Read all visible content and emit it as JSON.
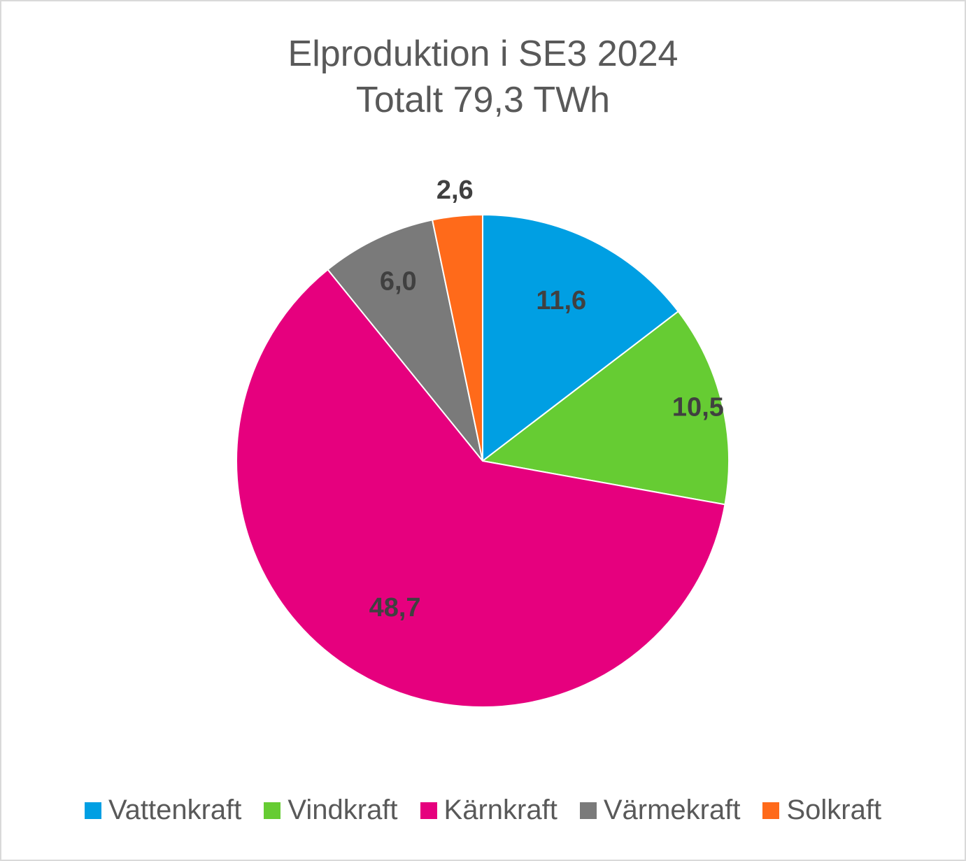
{
  "chart_data": {
    "type": "pie",
    "title": "Elproduktion i SE3 2024",
    "subtitle": "Totalt 79,3 TWh",
    "categories": [
      "Vattenkraft",
      "Vindkraft",
      "Kärnkraft",
      "Värmekraft",
      "Solkraft"
    ],
    "values": [
      11.6,
      10.5,
      48.7,
      6.0,
      2.6
    ],
    "data_labels": [
      "11,6",
      "10,5",
      "48,7",
      "6,0",
      "2,6"
    ],
    "colors": [
      "#009fe3",
      "#66cc33",
      "#e6007e",
      "#7a7a7a",
      "#ff6a1a"
    ],
    "legend_position": "bottom",
    "start_angle": "12 o'clock",
    "direction": "clockwise"
  }
}
